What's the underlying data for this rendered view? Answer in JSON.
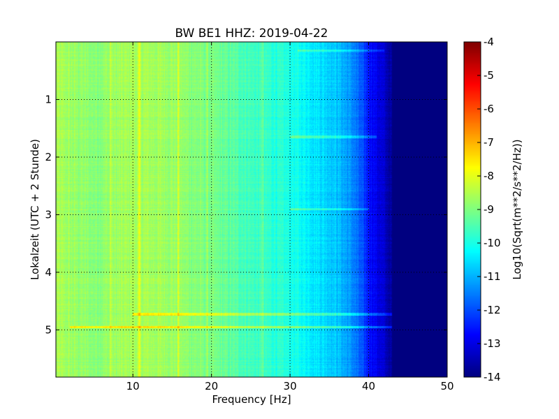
{
  "chart_data": {
    "type": "heatmap",
    "title": "BW BE1 HHZ: 2019-04-22",
    "xlabel": "Frequency [Hz]",
    "ylabel": "Lokalzeit (UTC + 2 Stunde)",
    "xlim": [
      0.2,
      50
    ],
    "ylim": [
      0,
      5.82
    ],
    "y_inverted": true,
    "xticks": [
      "10",
      "20",
      "30",
      "40",
      "50"
    ],
    "yticks": [
      "1",
      "2",
      "3",
      "4",
      "5"
    ],
    "grid": true,
    "colormap": "jet",
    "colorbar": {
      "label": "Log10(Sqrt(m**2/s**2/Hz))",
      "range": [
        -14,
        -4
      ],
      "ticks": [
        "-4",
        "-5",
        "-6",
        "-7",
        "-8",
        "-9",
        "-10",
        "-11",
        "-12",
        "-13",
        "-14"
      ]
    },
    "frequency_profile": {
      "frequency_hz": [
        0,
        5,
        10,
        15,
        20,
        25,
        30,
        33,
        36,
        38,
        40,
        42,
        43,
        44,
        50
      ],
      "log10_psd": [
        -8.6,
        -8.9,
        -8.6,
        -8.7,
        -9.1,
        -9.6,
        -10.0,
        -10.4,
        -10.8,
        -11.4,
        -12.5,
        -13.3,
        -13.8,
        -14,
        -14
      ]
    },
    "features": [
      {
        "type": "time_band",
        "time_h": 4.73,
        "freq_range_hz": [
          10,
          43
        ],
        "delta": 1.1
      },
      {
        "type": "time_band",
        "time_h": 4.95,
        "freq_range_hz": [
          2,
          43
        ],
        "delta": 1.2
      },
      {
        "type": "time_band",
        "time_h": 1.65,
        "freq_range_hz": [
          30,
          41
        ],
        "delta": 0.8
      },
      {
        "type": "time_band",
        "time_h": 2.9,
        "freq_range_hz": [
          30,
          40
        ],
        "delta": 0.7
      },
      {
        "type": "time_band",
        "time_h": 0.15,
        "freq_range_hz": [
          31,
          42
        ],
        "delta": 0.8
      },
      {
        "type": "freq_line",
        "freq_hz": 7.2,
        "delta": 0.4
      },
      {
        "type": "freq_line",
        "freq_hz": 10.8,
        "delta": 0.5
      },
      {
        "type": "freq_line",
        "freq_hz": 15.8,
        "delta": 0.5
      },
      {
        "type": "freq_line",
        "freq_hz": 19.5,
        "delta": 0.4
      },
      {
        "type": "freq_line",
        "freq_hz": 26.5,
        "delta": 0.5
      }
    ]
  }
}
